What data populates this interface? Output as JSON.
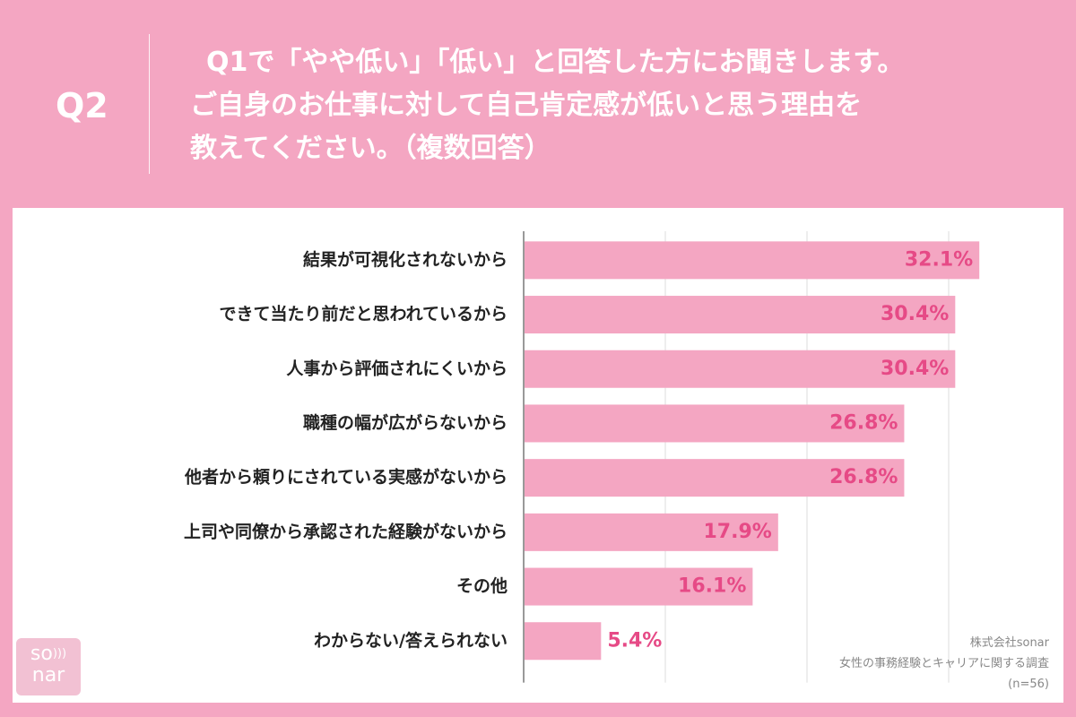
{
  "question": {
    "number": "Q2",
    "lines": [
      "Q1で「やや低い」「低い」と回答した方にお聞きします。",
      "ご自身のお仕事に対して自己肯定感が低いと思う理由を",
      "教えてください。（複数回答）"
    ]
  },
  "logo": {
    "top": "so",
    "wave_icon": "sound-wave-icon",
    "bottom": "nar"
  },
  "source": {
    "company": "株式会社sonar",
    "survey": "女性の事務経験とキャリアに関する調査",
    "sample": "(n=56)"
  },
  "colors": {
    "background": "#f4a6c2",
    "bar": "#f4a6c2",
    "value_text": "#e64a86",
    "gridline": "#dddddd"
  },
  "chart_data": {
    "type": "bar",
    "orientation": "horizontal",
    "title": "",
    "xlabel": "",
    "ylabel": "",
    "xlim": [
      0,
      50
    ],
    "grid": true,
    "categories": [
      "結果が可視化されないから",
      "できて当たり前だと思われているから",
      "人事から評価されにくいから",
      "職種の幅が広がらないから",
      "他者から頼りにされている実感がないから",
      "上司や同僚から承認された経験がないから",
      "その他",
      "わからない/答えられない"
    ],
    "values": [
      32.1,
      30.4,
      30.4,
      26.8,
      26.8,
      17.9,
      16.1,
      5.4
    ],
    "value_labels": [
      "32.1%",
      "30.4%",
      "30.4%",
      "26.8%",
      "26.8%",
      "17.9%",
      "16.1%",
      "5.4%"
    ]
  }
}
